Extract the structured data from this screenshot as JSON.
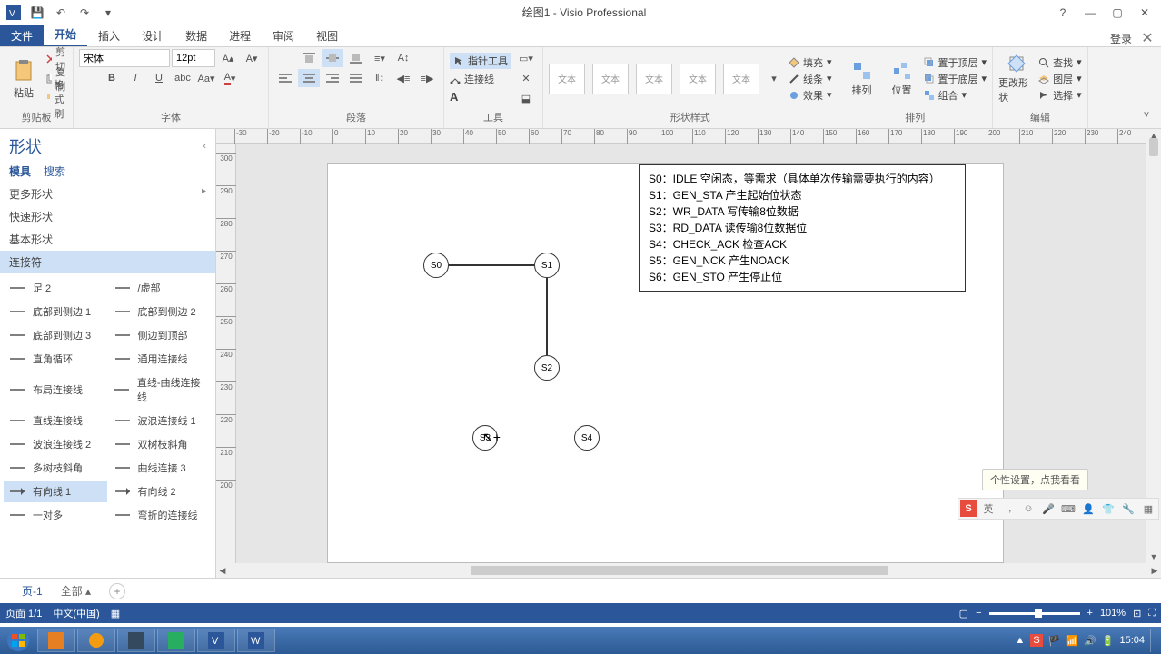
{
  "titlebar": {
    "title": "绘图1 - Visio Professional"
  },
  "qat": {
    "save": "💾",
    "undo": "↶",
    "redo": "↷"
  },
  "login": "登录",
  "tabs": {
    "file": "文件",
    "home": "开始",
    "insert": "插入",
    "design": "设计",
    "data": "数据",
    "process": "进程",
    "review": "审阅",
    "view": "视图"
  },
  "ribbon": {
    "clipboard": {
      "label": "剪贴板",
      "paste": "粘贴",
      "cut": "剪切",
      "copy": "复制",
      "format": "格式刷"
    },
    "font": {
      "label": "字体",
      "family": "宋体",
      "size": "12pt"
    },
    "paragraph": {
      "label": "段落"
    },
    "tools": {
      "label": "工具",
      "pointer": "指针工具",
      "connector": "连接线",
      "text": "A"
    },
    "shapestyles": {
      "label": "形状样式",
      "fill": "填充",
      "line": "线条",
      "effect": "效果",
      "sample": "文本"
    },
    "arrange": {
      "label": "排列",
      "align": "排列",
      "position": "位置",
      "front": "置于顶层",
      "back": "置于底层",
      "group": "组合"
    },
    "edit": {
      "label": "编辑",
      "changeshape": "更改形状",
      "find": "查找",
      "layers": "图层",
      "select": "选择"
    }
  },
  "shapes_panel": {
    "title": "形状",
    "tab_stencil": "模具",
    "tab_search": "搜索",
    "more": "更多形状",
    "quick": "快速形状",
    "basic": "基本形状",
    "connector": "连接符",
    "items": [
      [
        "足 2",
        "/虚部"
      ],
      [
        "底部到侧边 1",
        "底部到侧边 2"
      ],
      [
        "底部到侧边 3",
        "侧边到顶部"
      ],
      [
        "直角循环",
        "通用连接线"
      ],
      [
        "布局连接线",
        "直线-曲线连接线"
      ],
      [
        "直线连接线",
        "波浪连接线 1"
      ],
      [
        "波浪连接线 2",
        "双树枝斜角"
      ],
      [
        "多树枝斜角",
        "曲线连接 3"
      ],
      [
        "有向线 1",
        "有向线 2"
      ],
      [
        "一对多",
        "弯折的连接线"
      ]
    ]
  },
  "canvas": {
    "nodes": {
      "s0": "S0",
      "s1": "S1",
      "s2": "S2",
      "s3": "S3",
      "s4": "S4"
    },
    "legend": [
      "S0：IDLE    空闲态，等需求（具体单次传输需要执行的内容）",
      "S1：GEN_STA    产生起始位状态",
      "S2：WR_DATA   写传输8位数据",
      "S3：RD_DATA    读传输8位数据位",
      "S4：CHECK_ACK  检查ACK",
      "S5：GEN_NCK   产生NOACK",
      "S6：GEN_STO   产生停止位"
    ]
  },
  "ruler_h": [
    "-30",
    "-20",
    "-10",
    "0",
    "10",
    "20",
    "30",
    "40",
    "50",
    "60",
    "70",
    "80",
    "90",
    "100",
    "110",
    "120",
    "130",
    "140",
    "150",
    "160",
    "170",
    "180",
    "190",
    "200",
    "210",
    "220",
    "230",
    "240"
  ],
  "ruler_v": [
    "300",
    "290",
    "280",
    "270",
    "260",
    "250",
    "240",
    "230",
    "220",
    "210",
    "200"
  ],
  "page_tabs": {
    "page1": "页-1",
    "all": "全部",
    "add": "+"
  },
  "statusbar": {
    "page": "页面 1/1",
    "lang": "中文(中国)",
    "zoom": "101%"
  },
  "hint": "个性设置，点我看看",
  "ime": {
    "s": "S",
    "lang": "英"
  },
  "clock": "15:04"
}
